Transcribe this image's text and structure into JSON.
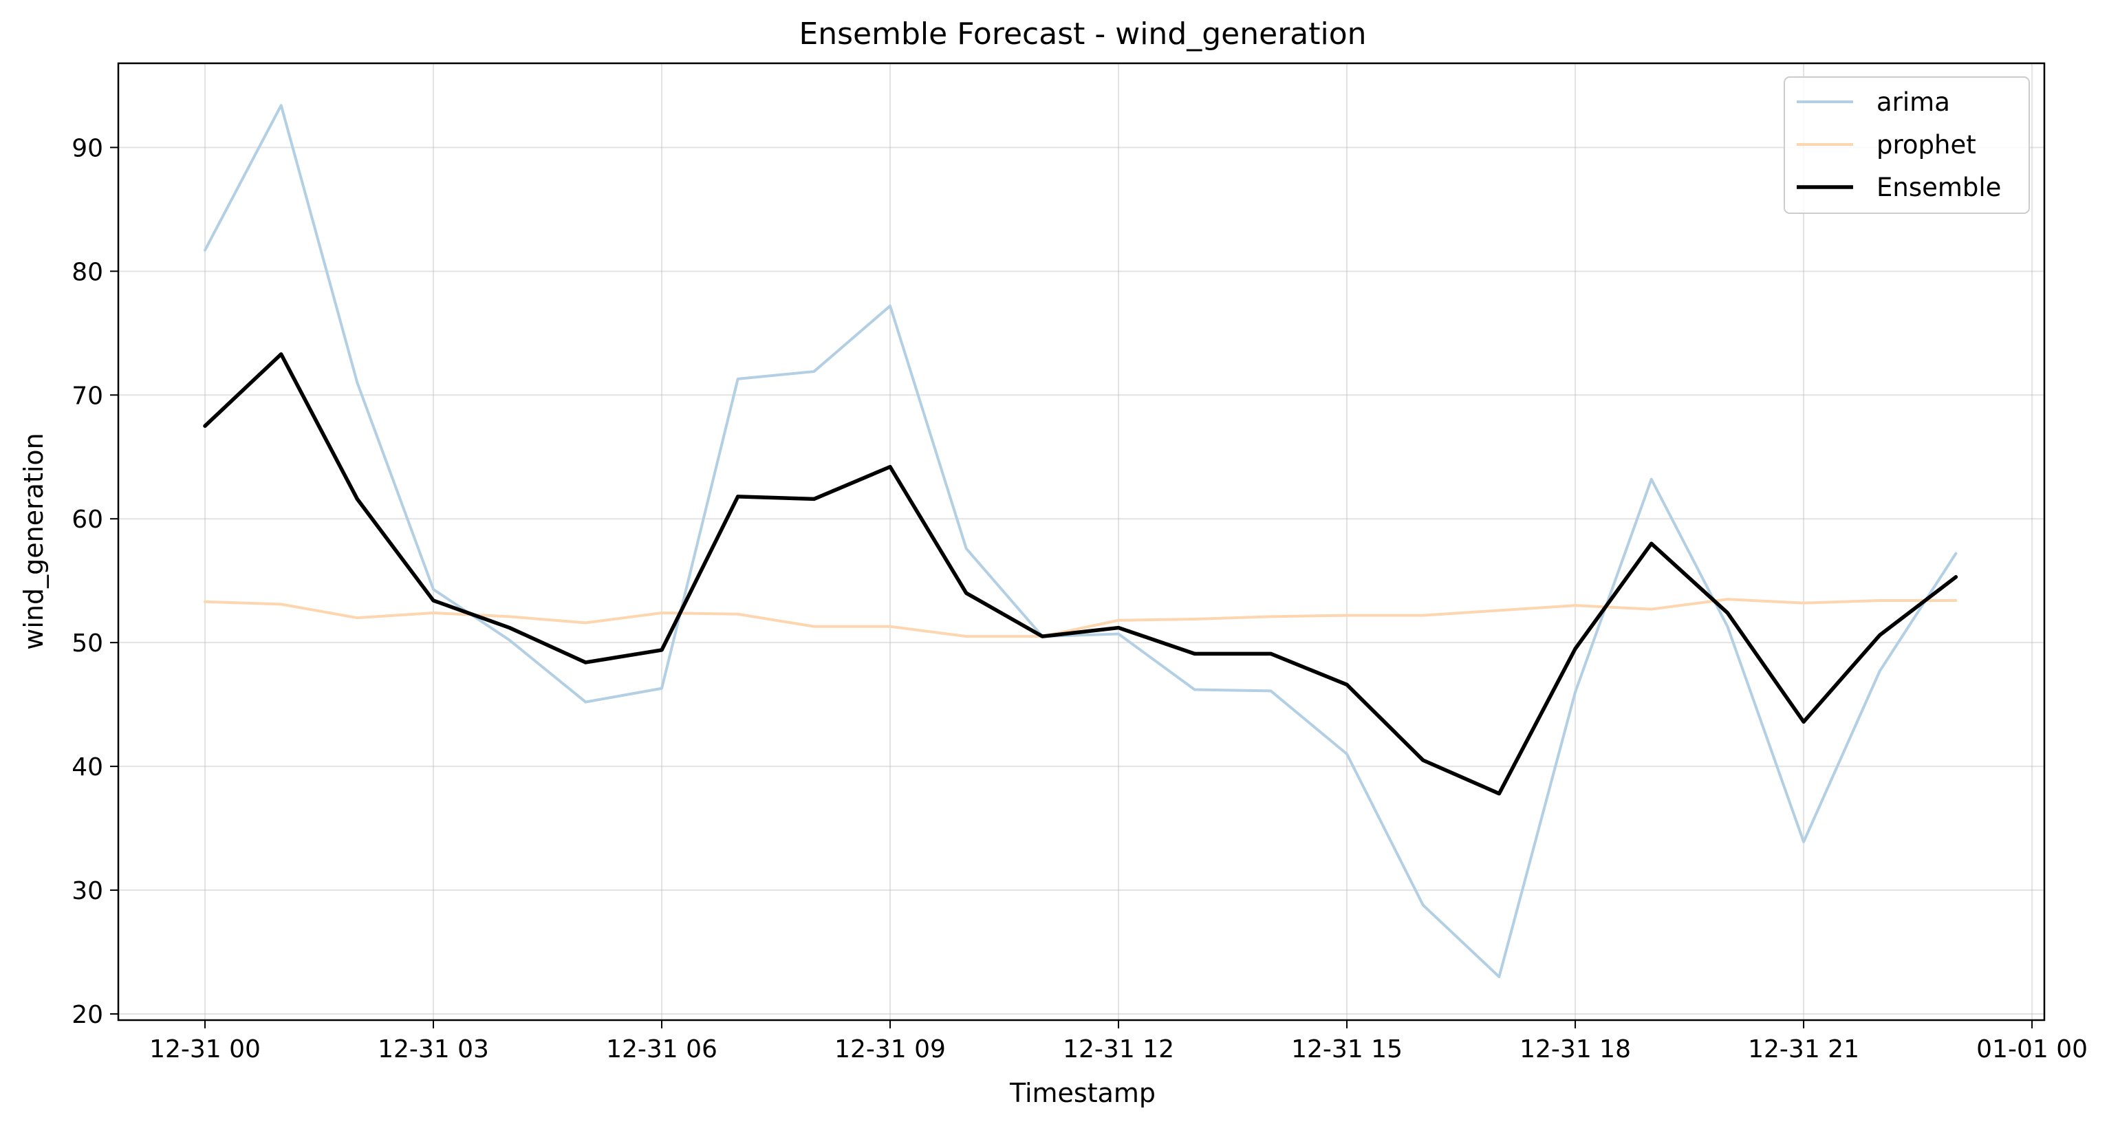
{
  "chart_data": {
    "type": "line",
    "title": "Ensemble Forecast - wind_generation",
    "xlabel": "Timestamp",
    "ylabel": "wind_generation",
    "x": [
      "12-31 00:00",
      "12-31 01:00",
      "12-31 02:00",
      "12-31 03:00",
      "12-31 04:00",
      "12-31 05:00",
      "12-31 06:00",
      "12-31 07:00",
      "12-31 08:00",
      "12-31 09:00",
      "12-31 10:00",
      "12-31 11:00",
      "12-31 12:00",
      "12-31 13:00",
      "12-31 14:00",
      "12-31 15:00",
      "12-31 16:00",
      "12-31 17:00",
      "12-31 18:00",
      "12-31 19:00",
      "12-31 20:00",
      "12-31 21:00",
      "12-31 22:00",
      "12-31 23:00"
    ],
    "x_ticks": [
      "12-31 00",
      "12-31 03",
      "12-31 06",
      "12-31 09",
      "12-31 12",
      "12-31 15",
      "12-31 18",
      "12-31 21",
      "01-01 00"
    ],
    "y_ticks": [
      20,
      30,
      40,
      50,
      60,
      70,
      80,
      90
    ],
    "ylim": [
      19.5,
      96.8
    ],
    "grid": true,
    "legend_position": "top-right",
    "series": [
      {
        "name": "arima",
        "color": "#b3cfe3",
        "values": [
          81.7,
          93.4,
          71.0,
          54.3,
          50.2,
          45.2,
          46.3,
          71.3,
          71.9,
          77.2,
          57.6,
          50.5,
          50.7,
          46.2,
          46.1,
          41.0,
          28.8,
          23.0,
          46.0,
          63.2,
          51.3,
          33.9,
          47.7,
          57.2
        ]
      },
      {
        "name": "prophet",
        "color": "#fdd6b0",
        "values": [
          53.3,
          53.1,
          52.0,
          52.4,
          52.1,
          51.6,
          52.4,
          52.3,
          51.3,
          51.3,
          50.5,
          50.5,
          51.8,
          51.9,
          52.1,
          52.2,
          52.2,
          52.6,
          53.0,
          52.7,
          53.5,
          53.2,
          53.4,
          53.4
        ]
      },
      {
        "name": "Ensemble",
        "color": "#000000",
        "values": [
          67.5,
          73.3,
          61.6,
          53.4,
          51.2,
          48.4,
          49.4,
          61.8,
          61.6,
          64.2,
          54.0,
          50.5,
          51.2,
          49.1,
          49.1,
          46.6,
          40.5,
          37.8,
          49.5,
          58.0,
          52.4,
          43.6,
          50.6,
          55.3
        ]
      }
    ]
  }
}
